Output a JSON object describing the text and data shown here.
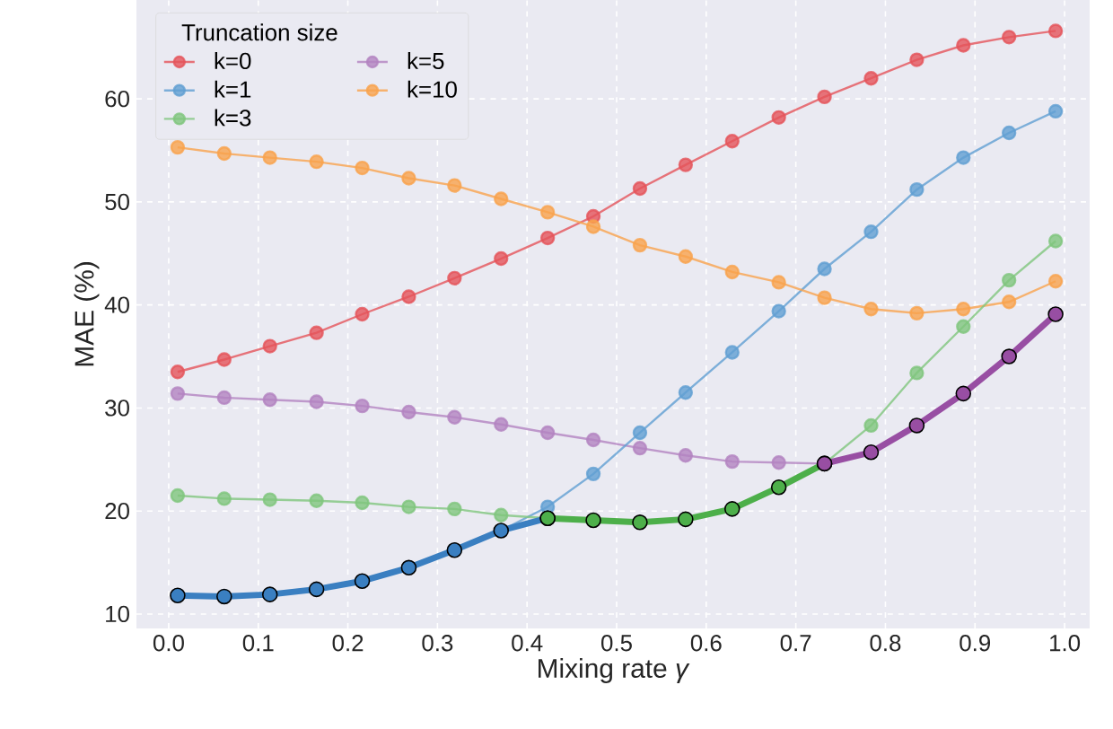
{
  "chart_data": {
    "type": "line",
    "xlabel": "Mixing rate *γ*",
    "ylabel": "MAE (%)",
    "legend_title": "Truncation size",
    "x": [
      0.01,
      0.062,
      0.113,
      0.165,
      0.216,
      0.268,
      0.319,
      0.371,
      0.423,
      0.474,
      0.526,
      0.577,
      0.629,
      0.681,
      0.732,
      0.784,
      0.835,
      0.887,
      0.938,
      0.99
    ],
    "series": [
      {
        "name": "k=0",
        "color": "#e5545a",
        "values": [
          33.5,
          34.7,
          36.0,
          37.3,
          39.1,
          40.8,
          42.6,
          44.5,
          46.5,
          48.6,
          51.3,
          53.6,
          55.9,
          58.2,
          60.2,
          62.0,
          63.8,
          65.2,
          66.0,
          66.6
        ]
      },
      {
        "name": "k=1",
        "color": "#609fd2",
        "values": [
          11.8,
          11.7,
          11.9,
          12.4,
          13.2,
          14.5,
          16.2,
          18.1,
          20.4,
          23.6,
          27.6,
          31.5,
          35.4,
          39.4,
          43.5,
          47.1,
          51.2,
          54.3,
          56.7,
          58.8
        ]
      },
      {
        "name": "k=3",
        "color": "#80c67d",
        "values": [
          21.5,
          21.2,
          21.1,
          21.0,
          20.8,
          20.4,
          20.2,
          19.6,
          19.3,
          19.1,
          18.9,
          19.2,
          20.2,
          22.3,
          24.6,
          28.3,
          33.4,
          37.9,
          42.4,
          46.2
        ]
      },
      {
        "name": "k=5",
        "color": "#b383c1",
        "values": [
          31.4,
          31.0,
          30.8,
          30.6,
          30.2,
          29.6,
          29.1,
          28.4,
          27.6,
          26.9,
          26.1,
          25.4,
          24.8,
          24.7,
          24.6,
          25.7,
          28.3,
          31.4,
          35.0,
          39.1
        ]
      },
      {
        "name": "k=10",
        "color": "#f9a24c",
        "values": [
          55.3,
          54.7,
          54.3,
          53.9,
          53.3,
          52.3,
          51.6,
          50.3,
          49.0,
          47.6,
          45.8,
          44.7,
          43.2,
          42.2,
          40.7,
          39.6,
          39.2,
          39.6,
          40.3,
          42.3
        ]
      },
      {
        "color": "#3a7fc1",
        "x": [
          0.01,
          0.062,
          0.113,
          0.165,
          0.216,
          0.268,
          0.319,
          0.371,
          0.423
        ],
        "values": [
          11.8,
          11.7,
          11.9,
          12.4,
          13.2,
          14.5,
          16.2,
          18.1,
          19.3
        ]
      },
      {
        "color": "#4daf4a",
        "x": [
          0.423,
          0.474,
          0.526,
          0.577,
          0.629,
          0.681,
          0.732
        ],
        "values": [
          19.3,
          19.1,
          18.9,
          19.2,
          20.2,
          22.3,
          24.6
        ]
      },
      {
        "color": "#984ea3",
        "x": [
          0.732,
          0.784,
          0.835,
          0.887,
          0.938,
          0.99
        ],
        "values": [
          24.6,
          25.7,
          28.3,
          31.4,
          35.0,
          39.1
        ]
      }
    ],
    "xlim": [
      -0.036,
      1.028
    ],
    "ylim": [
      8.6,
      69.6
    ],
    "xticks": [
      {
        "value": 0,
        "label": "0.0"
      },
      0.1,
      0.2,
      0.3,
      0.4,
      0.5,
      0.6,
      0.7,
      0.8,
      0.9,
      {
        "value": 1,
        "label": "1.0"
      }
    ],
    "yticks": [
      10,
      20,
      30,
      40,
      50,
      60
    ],
    "grid": true,
    "legend": "top left",
    "marker": "circle",
    "line_style": "solid"
  }
}
